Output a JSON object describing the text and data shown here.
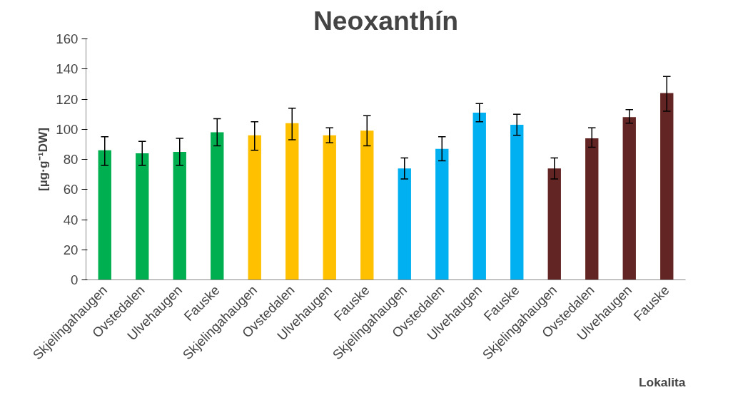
{
  "chart_data": {
    "type": "bar",
    "title": "Neoxanthín",
    "xlabel": "Lokalita",
    "ylabel": "[µg·g⁻¹DW]",
    "categories": [
      "Skjelingahaugen",
      "Ovstedalen",
      "Ulvehaugen",
      "Fauske",
      "Skjelingahaugen",
      "Ovstedalen",
      "Ulvehaugen",
      "Fauske",
      "Skjelingahaugen",
      "Ovstedalen",
      "Ulvehaugen",
      "Fauske",
      "Skjelingahaugen",
      "Ovstedalen",
      "Ulvehaugen",
      "Fauske"
    ],
    "values": [
      86,
      84,
      85,
      98,
      96,
      104,
      96,
      99,
      74,
      87,
      111,
      103,
      74,
      94,
      108,
      124
    ],
    "errors": [
      [
        76,
        95
      ],
      [
        76,
        92
      ],
      [
        76,
        94
      ],
      [
        89,
        107
      ],
      [
        86,
        105
      ],
      [
        93,
        114
      ],
      [
        91,
        101
      ],
      [
        89,
        109
      ],
      [
        67,
        81
      ],
      [
        79,
        95
      ],
      [
        105,
        117
      ],
      [
        96,
        110
      ],
      [
        67,
        81
      ],
      [
        88,
        101
      ],
      [
        104,
        113
      ],
      [
        112,
        135
      ]
    ],
    "colors": [
      "#00b050",
      "#00b050",
      "#00b050",
      "#00b050",
      "#ffc000",
      "#ffc000",
      "#ffc000",
      "#ffc000",
      "#00b0f0",
      "#00b0f0",
      "#00b0f0",
      "#00b0f0",
      "#632523",
      "#632523",
      "#632523",
      "#632523"
    ],
    "ylim": [
      0,
      160
    ],
    "yticks": [
      0,
      20,
      40,
      60,
      80,
      100,
      120,
      140,
      160
    ],
    "grid": false
  }
}
